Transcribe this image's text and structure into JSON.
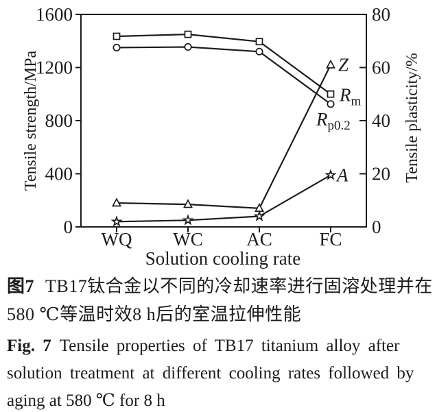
{
  "figure": {
    "caption_zh": {
      "label": "图7",
      "line1": "TB17钛合金以不同的冷却速率进行固溶处理并在",
      "line2": "580 ℃等温时效8 h后的室温拉伸性能"
    },
    "caption_en": {
      "label": "Fig. 7",
      "line1": "Tensile properties of TB17 titanium alloy after",
      "line2": "solution treatment at different cooling rates followed by",
      "line3": "aging at 580 ℃ for 8 h"
    }
  },
  "chart_data": {
    "type": "line",
    "categories": [
      "WQ",
      "WC",
      "AC",
      "FC"
    ],
    "xlabel": "Solution cooling rate",
    "left_axis": {
      "label": "Tensile strength/MPa",
      "min": 0,
      "max": 1600,
      "ticks": [
        0,
        400,
        800,
        1200,
        1600
      ]
    },
    "right_axis": {
      "label": "Tensile plasticity/%",
      "min": 0,
      "max": 80,
      "ticks": [
        0,
        20,
        40,
        60,
        80
      ]
    },
    "grid": false,
    "legend_position": "end-labels-right-of-last-point",
    "colors": {
      "line": "#1c1c1c",
      "marker_fill": "#ffffff",
      "background": "#ffffff"
    },
    "series": [
      {
        "id": "Rm",
        "label": "R",
        "label_sub": "m",
        "axis": "left",
        "marker": "square",
        "values": [
          1435,
          1450,
          1395,
          1000
        ],
        "label_dx": 13,
        "label_dy": 10
      },
      {
        "id": "Rp02",
        "label": "R",
        "label_sub": "p0.2",
        "axis": "left",
        "marker": "circle",
        "values": [
          1350,
          1355,
          1320,
          925
        ],
        "label_dx": -21,
        "label_dy": 31
      },
      {
        "id": "Z",
        "label": "Z",
        "label_sub": "",
        "axis": "right",
        "marker": "triangle",
        "values": [
          9,
          8.5,
          7,
          61
        ],
        "label_dx": 11,
        "label_dy": 9
      },
      {
        "id": "A",
        "label": "A",
        "label_sub": "",
        "axis": "right",
        "marker": "star",
        "values": [
          2,
          2.5,
          4,
          19.5
        ],
        "label_dx": 9,
        "label_dy": 9
      }
    ]
  }
}
